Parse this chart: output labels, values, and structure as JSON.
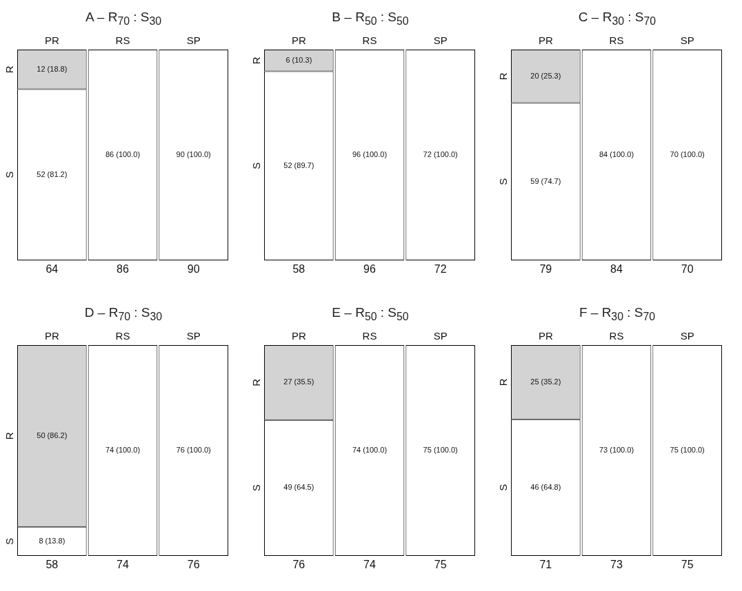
{
  "chart_data": [
    {
      "type": "bar",
      "title": "A – R$_{70}$ : S$_{30}$",
      "categories": [
        "PR",
        "RS",
        "SP"
      ],
      "stacked": true,
      "ylim": [
        0,
        100
      ],
      "tick_labels": "x",
      "grid": false,
      "annotations": [
        "64",
        "86",
        "90"
      ],
      "series": [
        {
          "name": "S",
          "color": "#ffffff",
          "values": [
            81.2,
            100.0,
            100.0
          ],
          "value_labels": [
            "52 (81.2)",
            "86 (100.0)",
            "90 (100.0)"
          ]
        },
        {
          "name": "R",
          "color": "#d3d3d3",
          "values": [
            18.8,
            0,
            0
          ],
          "value_labels": [
            "12 (18.8)",
            null,
            null
          ]
        }
      ]
    },
    {
      "type": "bar",
      "title": "B – R$_{50}$ : S$_{50}$",
      "categories": [
        "PR",
        "RS",
        "SP"
      ],
      "stacked": true,
      "ylim": [
        0,
        100
      ],
      "tick_labels": "x",
      "grid": false,
      "annotations": [
        "58",
        "96",
        "72"
      ],
      "series": [
        {
          "name": "S",
          "color": "#ffffff",
          "values": [
            89.7,
            100.0,
            100.0
          ],
          "value_labels": [
            "52 (89.7)",
            "96 (100.0)",
            "72 (100.0)"
          ]
        },
        {
          "name": "R",
          "color": "#d3d3d3",
          "values": [
            10.3,
            0,
            0
          ],
          "value_labels": [
            "6 (10.3)",
            null,
            null
          ]
        }
      ]
    },
    {
      "type": "bar",
      "title": "C – R$_{30}$ : S$_{70}$",
      "categories": [
        "PR",
        "RS",
        "SP"
      ],
      "stacked": true,
      "ylim": [
        0,
        100
      ],
      "tick_labels": "x",
      "grid": false,
      "annotations": [
        "79",
        "84",
        "70"
      ],
      "series": [
        {
          "name": "S",
          "color": "#ffffff",
          "values": [
            74.7,
            100.0,
            100.0
          ],
          "value_labels": [
            "59 (74.7)",
            "84 (100.0)",
            "70 (100.0)"
          ]
        },
        {
          "name": "R",
          "color": "#d3d3d3",
          "values": [
            25.3,
            0,
            0
          ],
          "value_labels": [
            "20 (25.3)",
            null,
            null
          ]
        }
      ]
    },
    {
      "type": "bar",
      "title": "D – R$_{70}$ : S$_{30}$",
      "categories": [
        "PR",
        "RS",
        "SP"
      ],
      "stacked": true,
      "ylim": [
        0,
        100
      ],
      "tick_labels": "x",
      "grid": false,
      "annotations": [
        "58",
        "74",
        "76"
      ],
      "series": [
        {
          "name": "S",
          "color": "#ffffff",
          "values": [
            13.8,
            100.0,
            100.0
          ],
          "value_labels": [
            "8 (13.8)",
            "74 (100.0)",
            "76 (100.0)"
          ]
        },
        {
          "name": "R",
          "color": "#d3d3d3",
          "values": [
            86.2,
            0,
            0
          ],
          "value_labels": [
            "50 (86.2)",
            null,
            null
          ]
        }
      ]
    },
    {
      "type": "bar",
      "title": "E – R$_{50}$ : S$_{50}$",
      "categories": [
        "PR",
        "RS",
        "SP"
      ],
      "stacked": true,
      "ylim": [
        0,
        100
      ],
      "tick_labels": "x",
      "grid": false,
      "annotations": [
        "76",
        "74",
        "75"
      ],
      "series": [
        {
          "name": "S",
          "color": "#ffffff",
          "values": [
            64.5,
            100.0,
            100.0
          ],
          "value_labels": [
            "49 (64.5)",
            "74 (100.0)",
            "75 (100.0)"
          ]
        },
        {
          "name": "R",
          "color": "#d3d3d3",
          "values": [
            35.5,
            0,
            0
          ],
          "value_labels": [
            "27 (35.5)",
            null,
            null
          ]
        }
      ]
    },
    {
      "type": "bar",
      "title": "F – R$_{30}$ : S$_{70}$",
      "categories": [
        "PR",
        "RS",
        "SP"
      ],
      "stacked": true,
      "ylim": [
        0,
        100
      ],
      "tick_labels": "x",
      "grid": false,
      "annotations": [
        "71",
        "73",
        "75"
      ],
      "series": [
        {
          "name": "S",
          "color": "#ffffff",
          "values": [
            64.8,
            100.0,
            100.0
          ],
          "value_labels": [
            "46 (64.8)",
            "73 (100.0)",
            "75 (100.0)"
          ]
        },
        {
          "name": "R",
          "color": "#d3d3d3",
          "values": [
            35.2,
            0,
            0
          ],
          "value_labels": [
            "25 (35.2)",
            null,
            null
          ]
        }
      ]
    }
  ]
}
